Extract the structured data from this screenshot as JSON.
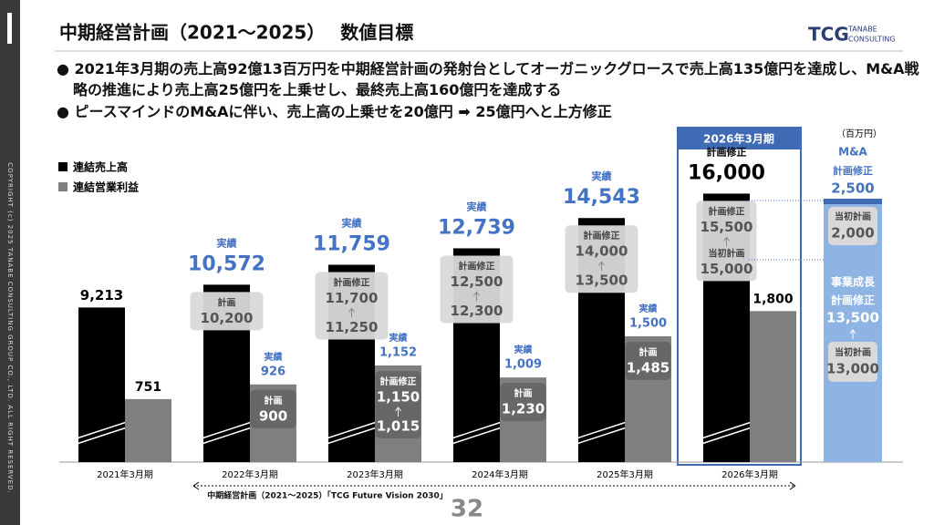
{
  "header": {
    "title": "中期経営計画（2021～2025）　 数値目標",
    "logo": "TCG",
    "logo_sub1": "TANABE",
    "logo_sub2": "CONSULTING"
  },
  "bullets": [
    "2021年3月期の売上高92億13百万円を中期経営計画の発射台としてオーガニックグロースで売上高135億円を達成し、M&A戦略の推進により売上高25億円を上乗せし、最終売上高160億円を達成する",
    "ピースマインドのM&Aに伴い、売上高の上乗せを20億円 ➡ 25億円へと上方修正"
  ],
  "sidebar": "COPYRIGHT (c) 2025 TANABE CONSULTING GROUP CO., LTD. ALL RIGHT RESERVED.",
  "page_number": "32",
  "chart_data": {
    "type": "bar",
    "categories": [
      "2021年3月期",
      "2022年3月期",
      "2023年3月期",
      "2024年3月期",
      "2025年3月期",
      "2026年3月期"
    ],
    "ylim": [
      0,
      17000
    ],
    "y2lim": [
      0,
      3400
    ],
    "series": [
      {
        "name": "連結売上高",
        "color": "#000000",
        "values": [
          9213,
          10572,
          11759,
          12739,
          14543,
          16000
        ],
        "value_labels": [
          "9,213",
          "10,572",
          "11,759",
          "12,739",
          "14,543",
          "16,000"
        ]
      },
      {
        "name": "連結営業利益",
        "color": "#7f7f7f",
        "axis": "y2",
        "values": [
          751,
          926,
          1152,
          1009,
          1500,
          1800
        ],
        "value_labels": [
          "751",
          "926",
          "1,152",
          "1,009",
          "1,500",
          "1,800"
        ]
      }
    ],
    "sales_notes": [
      null,
      {
        "status": "実績",
        "box": [
          {
            "label": "計画",
            "value": "10,200"
          }
        ]
      },
      {
        "status": "実績",
        "box": [
          {
            "label": "計画修正",
            "value": "11,700"
          },
          {
            "value": "11,250"
          }
        ]
      },
      {
        "status": "実績",
        "box": [
          {
            "label": "計画修正",
            "value": "12,500"
          },
          {
            "value": "12,300"
          }
        ]
      },
      {
        "status": "実績",
        "box": [
          {
            "label": "計画修正",
            "value": "14,000"
          },
          {
            "value": "13,500"
          }
        ]
      },
      {
        "status": "計画修正",
        "box": [
          {
            "label": "計画修正",
            "value": "15,500"
          },
          {
            "label": "当初計画",
            "value": "15,000"
          }
        ]
      }
    ],
    "profit_notes": [
      null,
      {
        "status": "実績",
        "box": [
          {
            "label": "計画",
            "value": "900"
          }
        ]
      },
      {
        "status": "実績",
        "box": [
          {
            "label": "計画修正",
            "value": "1,150"
          },
          {
            "value": "1,015"
          }
        ]
      },
      {
        "status": "実績",
        "box": [
          {
            "label": "計画",
            "value": "1,230"
          }
        ]
      },
      {
        "status": "実績",
        "box": [
          {
            "label": "計画",
            "value": "1,485"
          }
        ]
      },
      null
    ],
    "highlight": "2026年3月期",
    "right_column": {
      "unit": "（百万円）",
      "ma_name": "M&A",
      "ma_status": "計画修正",
      "ma_value": "2,500",
      "ma_initial_label": "当初計画",
      "ma_initial": "2,000",
      "growth_name": "事業成長",
      "growth_status": "計画修正",
      "growth_value": "13,500",
      "growth_initial_label": "当初計画",
      "growth_initial": "13,000"
    },
    "period_label": "中期経営計画（2021～2025）「TCG Future Vision 2030」"
  }
}
